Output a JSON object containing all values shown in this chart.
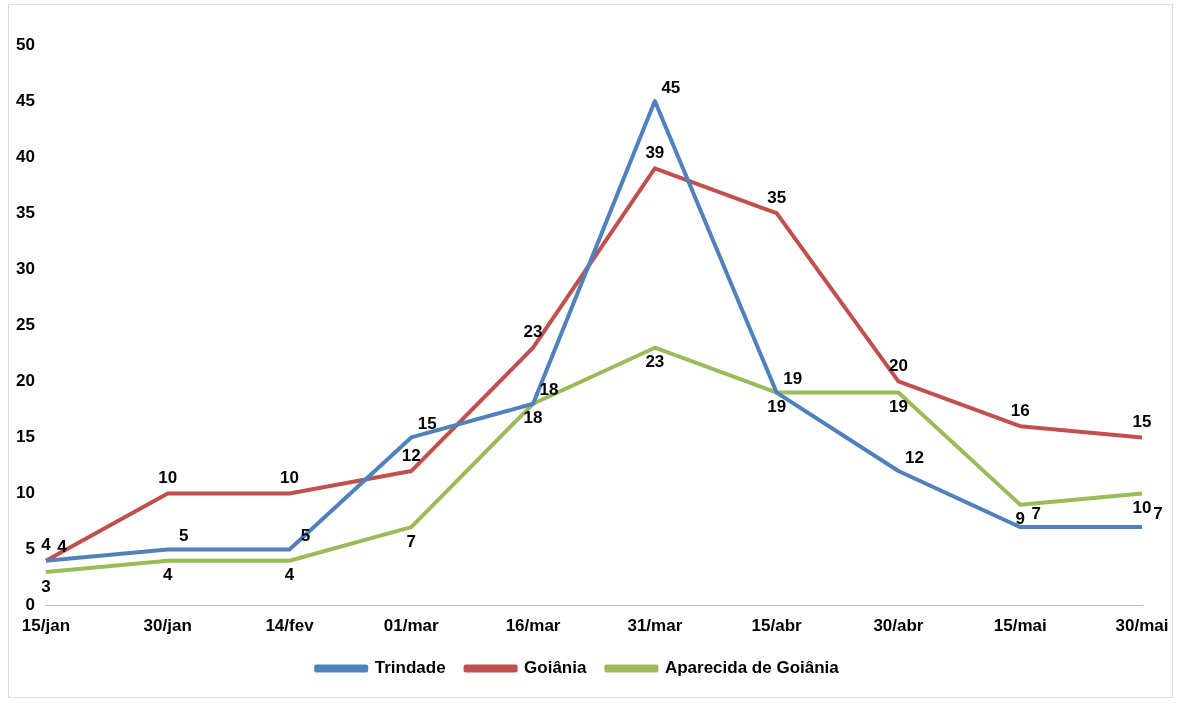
{
  "chart_data": {
    "type": "line",
    "categories": [
      "15/jan",
      "30/jan",
      "14/fev",
      "01/mar",
      "16/mar",
      "31/mar",
      "15/abr",
      "30/abr",
      "15/mai",
      "30/mai"
    ],
    "series": [
      {
        "name": "Trindade",
        "color": "#4f81bd",
        "values": [
          4,
          5,
          5,
          15,
          18,
          45,
          19,
          12,
          7,
          7
        ]
      },
      {
        "name": "Goiânia",
        "color": "#c0504d",
        "values": [
          4,
          10,
          10,
          12,
          23,
          39,
          35,
          20,
          16,
          15
        ]
      },
      {
        "name": "Aparecida de Goiânia",
        "color": "#9bbb59",
        "values": [
          3,
          4,
          4,
          7,
          18,
          23,
          19,
          19,
          9,
          10
        ]
      }
    ],
    "ylim": [
      0,
      50
    ],
    "yticks": [
      0,
      5,
      10,
      15,
      20,
      25,
      30,
      35,
      40,
      45,
      50
    ],
    "grid": false,
    "legend": "bottom",
    "marker": "none",
    "line_style": "solid",
    "data_labels": true
  }
}
